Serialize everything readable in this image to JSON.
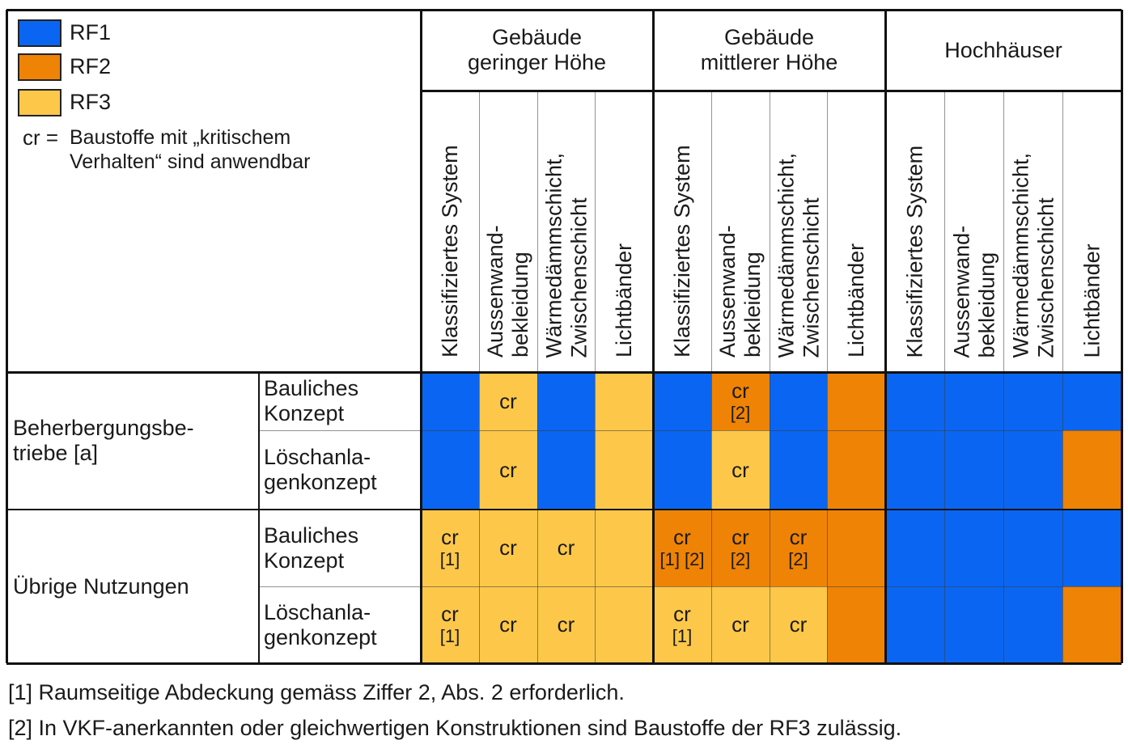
{
  "legend": {
    "items": [
      {
        "label": "RF1",
        "color": "#0a66f2"
      },
      {
        "label": "RF2",
        "color": "#ef8305"
      },
      {
        "label": "RF3",
        "color": "#fdc84a"
      }
    ],
    "cr_key": "cr =",
    "cr_text_line1": "Baustoffe mit „kritischem",
    "cr_text_line2": "Verhalten“ sind anwendbar"
  },
  "groups": [
    {
      "line1": "Gebäude",
      "line2": "geringer Höhe"
    },
    {
      "line1": "Gebäude",
      "line2": "mittlerer Höhe"
    },
    {
      "line1": "Hochhäuser",
      "line2": ""
    }
  ],
  "subcolumns": [
    {
      "line1": "Klassifiziertes System",
      "line2": ""
    },
    {
      "line1": "Aussenwand-",
      "line2": "bekleidung"
    },
    {
      "line1": "Wärmedämmschicht,",
      "line2": "Zwischenschicht"
    },
    {
      "line1": "Lichtbänder",
      "line2": ""
    }
  ],
  "row_groups": [
    {
      "line1": "Beherbergungsbe-",
      "line2": "triebe [a]"
    },
    {
      "line1": "Übrige Nutzungen",
      "line2": ""
    }
  ],
  "rows": [
    {
      "line1": "Bauliches",
      "line2": "Konzept"
    },
    {
      "line1": "Löschanla-",
      "line2": "genkonzept"
    },
    {
      "line1": "Bauliches",
      "line2": "Konzept"
    },
    {
      "line1": "Löschanla-",
      "line2": "genkonzept"
    }
  ],
  "cells": [
    [
      {
        "rf": "RF1",
        "text": "",
        "note": ""
      },
      {
        "rf": "RF3",
        "text": "cr",
        "note": ""
      },
      {
        "rf": "RF1",
        "text": "",
        "note": ""
      },
      {
        "rf": "RF3",
        "text": "",
        "note": ""
      },
      {
        "rf": "RF1",
        "text": "",
        "note": ""
      },
      {
        "rf": "RF2",
        "text": "cr",
        "note": "[2]"
      },
      {
        "rf": "RF1",
        "text": "",
        "note": ""
      },
      {
        "rf": "RF2",
        "text": "",
        "note": ""
      },
      {
        "rf": "RF1",
        "text": "",
        "note": ""
      },
      {
        "rf": "RF1",
        "text": "",
        "note": ""
      },
      {
        "rf": "RF1",
        "text": "",
        "note": ""
      },
      {
        "rf": "RF1",
        "text": "",
        "note": ""
      }
    ],
    [
      {
        "rf": "RF1",
        "text": "",
        "note": ""
      },
      {
        "rf": "RF3",
        "text": "cr",
        "note": ""
      },
      {
        "rf": "RF1",
        "text": "",
        "note": ""
      },
      {
        "rf": "RF3",
        "text": "",
        "note": ""
      },
      {
        "rf": "RF1",
        "text": "",
        "note": ""
      },
      {
        "rf": "RF3",
        "text": "cr",
        "note": ""
      },
      {
        "rf": "RF1",
        "text": "",
        "note": ""
      },
      {
        "rf": "RF2",
        "text": "",
        "note": ""
      },
      {
        "rf": "RF1",
        "text": "",
        "note": ""
      },
      {
        "rf": "RF1",
        "text": "",
        "note": ""
      },
      {
        "rf": "RF1",
        "text": "",
        "note": ""
      },
      {
        "rf": "RF2",
        "text": "",
        "note": ""
      }
    ],
    [
      {
        "rf": "RF3",
        "text": "cr",
        "note": "[1]"
      },
      {
        "rf": "RF3",
        "text": "cr",
        "note": ""
      },
      {
        "rf": "RF3",
        "text": "cr",
        "note": ""
      },
      {
        "rf": "RF3",
        "text": "",
        "note": ""
      },
      {
        "rf": "RF2",
        "text": "cr",
        "note": "[1] [2]"
      },
      {
        "rf": "RF2",
        "text": "cr",
        "note": "[2]"
      },
      {
        "rf": "RF2",
        "text": "cr",
        "note": "[2]"
      },
      {
        "rf": "RF2",
        "text": "",
        "note": ""
      },
      {
        "rf": "RF1",
        "text": "",
        "note": ""
      },
      {
        "rf": "RF1",
        "text": "",
        "note": ""
      },
      {
        "rf": "RF1",
        "text": "",
        "note": ""
      },
      {
        "rf": "RF1",
        "text": "",
        "note": ""
      }
    ],
    [
      {
        "rf": "RF3",
        "text": "cr",
        "note": "[1]"
      },
      {
        "rf": "RF3",
        "text": "cr",
        "note": ""
      },
      {
        "rf": "RF3",
        "text": "cr",
        "note": ""
      },
      {
        "rf": "RF3",
        "text": "",
        "note": ""
      },
      {
        "rf": "RF3",
        "text": "cr",
        "note": "[1]"
      },
      {
        "rf": "RF3",
        "text": "cr",
        "note": ""
      },
      {
        "rf": "RF3",
        "text": "cr",
        "note": ""
      },
      {
        "rf": "RF2",
        "text": "",
        "note": ""
      },
      {
        "rf": "RF1",
        "text": "",
        "note": ""
      },
      {
        "rf": "RF1",
        "text": "",
        "note": ""
      },
      {
        "rf": "RF1",
        "text": "",
        "note": ""
      },
      {
        "rf": "RF2",
        "text": "",
        "note": ""
      }
    ]
  ],
  "footnotes": [
    "[1] Raumseitige Abdeckung gemäss Ziffer 2, Abs. 2 erforderlich.",
    "[2] In VKF-anerkannten oder gleichwertigen Konstruktionen sind Baustoffe der RF3 zulässig."
  ]
}
